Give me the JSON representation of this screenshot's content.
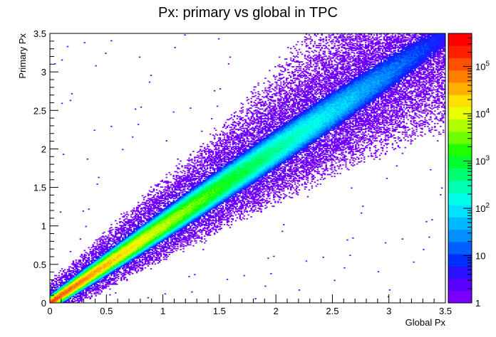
{
  "chart_data": {
    "type": "heatmap",
    "title": "Px: primary vs global in TPC",
    "xlabel": "Global Px",
    "ylabel": "Primary Px",
    "xlim": [
      0,
      3.5
    ],
    "ylim": [
      0,
      3.5
    ],
    "x_ticks": [
      "0",
      "0.5",
      "1",
      "1.5",
      "2",
      "2.5",
      "3",
      "3.5"
    ],
    "y_ticks": [
      "0",
      "0.5",
      "1",
      "1.5",
      "2",
      "2.5",
      "3",
      "3.5"
    ],
    "z_scale": "log",
    "z_range": [
      1,
      500000
    ],
    "colorbar_ticks": [
      {
        "mantissa": "1",
        "exponent": ""
      },
      {
        "mantissa": "10",
        "exponent": ""
      },
      {
        "mantissa": "10",
        "exponent": "2"
      },
      {
        "mantissa": "10",
        "exponent": "3"
      },
      {
        "mantissa": "10",
        "exponent": "4"
      },
      {
        "mantissa": "10",
        "exponent": "5"
      }
    ],
    "description_of_density": "strong diagonal correlation: Primary Px approx equal to Global Px, density highest near origin and decreasing along the diagonal toward (3.5, 3.5)",
    "palette": [
      "#7a00ff",
      "#5a00ff",
      "#2a10ff",
      "#0030ff",
      "#0060ff",
      "#0090ff",
      "#00b8ff",
      "#00e0ff",
      "#00ffe8",
      "#00ffb0",
      "#00ff70",
      "#00ff30",
      "#20ff00",
      "#70ff00",
      "#b0ff00",
      "#e8ff00",
      "#ffe000",
      "#ffb000",
      "#ff8000",
      "#ff5000",
      "#ff2000",
      "#ff0000"
    ]
  }
}
